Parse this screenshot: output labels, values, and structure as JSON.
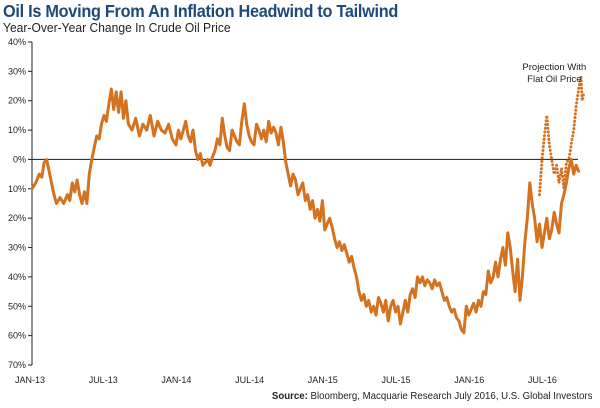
{
  "header": {
    "title": "Oil Is Moving From An Inflation Headwind to Tailwind",
    "subtitle": "Year-Over-Year Change In Crude Oil Price"
  },
  "footer": {
    "source_label": "Source:",
    "source_text": " Bloomberg, Macquarie Research July 2016, U.S. Global Investors"
  },
  "chart_data": {
    "type": "line",
    "title": "Oil Is Moving From An Inflation Headwind to Tailwind",
    "subtitle": "Year-Over-Year Change In Crude Oil Price",
    "xlabel": "",
    "ylabel": "",
    "x_unit": "months since Jan 2013",
    "xlim": [
      0,
      45.2
    ],
    "ylim": [
      -70,
      40
    ],
    "grid": false,
    "y_ticks": [
      40,
      30,
      20,
      10,
      0,
      -10,
      -20,
      -30,
      -40,
      -50,
      -60,
      -70
    ],
    "y_tick_labels": [
      "40%",
      "30%",
      "20%",
      "10%",
      "0%",
      "10%",
      "20%",
      "30%",
      "40%",
      "50%",
      "60%",
      "70%"
    ],
    "x_ticks": [
      0,
      6,
      12,
      18,
      24,
      30,
      36,
      42
    ],
    "x_tick_labels": [
      "JAN-13",
      "JUL-13",
      "JAN-14",
      "JUL-14",
      "JAN-15",
      "JUL-15",
      "JAN-16",
      "JUL-16"
    ],
    "line_color": "#d4721f",
    "zero_line_color": "#333333",
    "annotation": {
      "lines": [
        "Projection With",
        "Flat Oil Price"
      ],
      "anchor_x": 43.8,
      "anchor_y": 31
    },
    "series": [
      {
        "name": "Year-Over-Year Change In Crude Oil Price",
        "style": "solid",
        "x": [
          0,
          0.3,
          0.5,
          0.7,
          0.9,
          1.0,
          1.2,
          1.4,
          1.6,
          1.8,
          2.0,
          2.2,
          2.4,
          2.6,
          2.8,
          3.0,
          3.2,
          3.4,
          3.6,
          3.8,
          4.0,
          4.2,
          4.5,
          4.7,
          4.9,
          5.1,
          5.3,
          5.5,
          5.6,
          5.8,
          6.0,
          6.2,
          6.4,
          6.6,
          6.8,
          7.0,
          7.3,
          7.6,
          7.9,
          8.2,
          8.5,
          8.8,
          9.1,
          9.4,
          9.7,
          10.0,
          10.3,
          10.6,
          10.9,
          11.2,
          11.5,
          11.8,
          12.1,
          12.4,
          12.7,
          13.0,
          13.3,
          13.6,
          13.9,
          14.2,
          14.5,
          14.8,
          15.1,
          15.4,
          15.7,
          16.0,
          16.3,
          16.6,
          16.9,
          17.2,
          17.5,
          17.8,
          18.1,
          18.4,
          18.7,
          19.0,
          19.3,
          19.6,
          19.9,
          20.2,
          20.5,
          20.8,
          21.1,
          21.4,
          21.7,
          22.0,
          22.3,
          22.6,
          22.9,
          23.2,
          23.5,
          23.8,
          24.1,
          24.4,
          24.7,
          25.0,
          25.3,
          25.6,
          25.9,
          26.2,
          26.5,
          26.8,
          27.1,
          27.4,
          27.7,
          28.0,
          28.3,
          28.6,
          28.9,
          29.2,
          29.5,
          29.8,
          30.1,
          30.4,
          30.7,
          31.0,
          31.3,
          31.6,
          31.9,
          32.2,
          32.5,
          32.8,
          33.1,
          33.4,
          33.7,
          34.0,
          34.3,
          34.6,
          34.9,
          35.2,
          35.5,
          35.8,
          36.1,
          36.4,
          36.7,
          37.0,
          37.3,
          37.6,
          37.9,
          38.2,
          38.5,
          38.8,
          39.1,
          39.4,
          39.7,
          40.0,
          40.3,
          40.6,
          40.9,
          41.2,
          41.5,
          41.8,
          42.0,
          42.2,
          42.4
        ],
        "y": [
          -10,
          -8,
          -5,
          -6,
          -2,
          -3,
          0,
          -4,
          -6,
          -10,
          -15,
          -13,
          -15,
          -14,
          -12,
          -13,
          -8,
          -10,
          -7,
          -12,
          -15,
          -10,
          -13,
          -15,
          -5,
          0,
          3,
          8,
          7,
          12,
          15,
          13,
          20,
          24,
          18,
          22,
          16,
          23,
          15,
          20,
          12,
          10,
          14,
          8,
          12,
          10,
          14,
          8,
          13,
          10,
          9,
          12,
          7,
          5,
          10,
          7,
          10,
          12,
          8,
          6,
          9,
          10,
          2,
          0,
          4,
          2,
          -2,
          -1,
          0,
          -2,
          1,
          3,
          7,
          5,
          14,
          8,
          4,
          3,
          10,
          8,
          7,
          5,
          12,
          20,
          14,
          9,
          7,
          5,
          12,
          11,
          8,
          10,
          6,
          14,
          9,
          11,
          10,
          6,
          12,
          8,
          0,
          -6,
          -9,
          -5,
          -7,
          -12,
          -10,
          -8,
          -14,
          -12,
          -17,
          -14,
          -20,
          -18,
          -22,
          -15,
          -25,
          -23,
          -20,
          -22,
          -27,
          -30,
          -28,
          -32,
          -30,
          -33,
          -35,
          -34,
          -38,
          -40,
          -45,
          -48,
          -46,
          -50,
          -48,
          -52,
          -50,
          -52,
          -45,
          -49,
          -52,
          -48,
          -55,
          -51,
          -48,
          -53,
          -50,
          -52,
          -56,
          -54,
          -50,
          -52,
          -46,
          -44,
          -47
        ],
        "x_cont": [
          42.6,
          42.8,
          43.0,
          43.2,
          43.4,
          43.6,
          43.8,
          44.0,
          44.2,
          44.4,
          44.6,
          44.8,
          45.0,
          45.2
        ],
        "y_cont": [
          -44,
          -42,
          -40,
          -38,
          -41,
          -39,
          -43,
          -40,
          -44,
          -42,
          -46,
          -41,
          -43,
          -42
        ]
      }
    ],
    "points_solid": [
      [
        0,
        -10
      ],
      [
        0.3,
        -8
      ],
      [
        0.6,
        -5
      ],
      [
        0.8,
        -6
      ],
      [
        1.0,
        -1
      ],
      [
        1.2,
        0
      ],
      [
        1.4,
        -4
      ],
      [
        1.6,
        -8
      ],
      [
        1.8,
        -12
      ],
      [
        2.0,
        -15
      ],
      [
        2.3,
        -13
      ],
      [
        2.6,
        -15
      ],
      [
        2.9,
        -12
      ],
      [
        3.1,
        -14
      ],
      [
        3.3,
        -8
      ],
      [
        3.5,
        -11
      ],
      [
        3.7,
        -7
      ],
      [
        3.9,
        -12
      ],
      [
        4.1,
        -15
      ],
      [
        4.3,
        -11
      ],
      [
        4.5,
        -15
      ],
      [
        4.7,
        -5
      ],
      [
        4.9,
        0
      ],
      [
        5.1,
        4
      ],
      [
        5.3,
        8
      ],
      [
        5.5,
        7
      ],
      [
        5.7,
        12
      ],
      [
        5.9,
        15
      ],
      [
        6.1,
        13
      ],
      [
        6.3,
        19
      ],
      [
        6.5,
        24
      ],
      [
        6.7,
        17
      ],
      [
        6.9,
        23
      ],
      [
        7.1,
        16
      ],
      [
        7.3,
        23
      ],
      [
        7.5,
        14
      ],
      [
        7.7,
        20
      ],
      [
        7.9,
        12
      ],
      [
        8.2,
        10
      ],
      [
        8.5,
        14
      ],
      [
        8.8,
        8
      ],
      [
        9.1,
        12
      ],
      [
        9.4,
        10
      ],
      [
        9.7,
        15
      ],
      [
        10.0,
        8
      ],
      [
        10.3,
        13
      ],
      [
        10.6,
        10
      ],
      [
        10.9,
        9
      ],
      [
        11.2,
        12
      ],
      [
        11.5,
        7
      ],
      [
        11.8,
        5
      ],
      [
        12.0,
        10
      ],
      [
        12.2,
        7
      ],
      [
        12.4,
        10
      ],
      [
        12.6,
        13
      ],
      [
        12.8,
        8
      ],
      [
        13.0,
        6
      ],
      [
        13.2,
        10
      ],
      [
        13.4,
        3
      ],
      [
        13.6,
        0
      ],
      [
        13.8,
        2
      ],
      [
        14.0,
        -2
      ],
      [
        14.2,
        -1
      ],
      [
        14.4,
        0
      ],
      [
        14.6,
        -2
      ],
      [
        14.8,
        1
      ],
      [
        15.0,
        3
      ],
      [
        15.2,
        7
      ],
      [
        15.4,
        5
      ],
      [
        15.6,
        14
      ],
      [
        15.8,
        8
      ],
      [
        16.0,
        4
      ],
      [
        16.2,
        3
      ],
      [
        16.4,
        10
      ],
      [
        16.6,
        8
      ],
      [
        16.8,
        6
      ],
      [
        17.0,
        5
      ],
      [
        17.2,
        13
      ],
      [
        17.4,
        19
      ],
      [
        17.6,
        12
      ],
      [
        17.8,
        8
      ],
      [
        18.0,
        6
      ],
      [
        18.2,
        5
      ],
      [
        18.4,
        12
      ],
      [
        18.6,
        10
      ],
      [
        18.8,
        7
      ],
      [
        19.0,
        10
      ],
      [
        19.2,
        6
      ],
      [
        19.4,
        13
      ],
      [
        19.6,
        9
      ],
      [
        19.8,
        11
      ],
      [
        20.0,
        9
      ],
      [
        20.2,
        5
      ],
      [
        20.4,
        11
      ],
      [
        20.6,
        6
      ],
      [
        20.8,
        -1
      ],
      [
        21.0,
        -5
      ],
      [
        21.2,
        -9
      ],
      [
        21.4,
        -5
      ],
      [
        21.6,
        -7
      ],
      [
        21.8,
        -12
      ],
      [
        22.0,
        -10
      ],
      [
        22.2,
        -8
      ],
      [
        22.4,
        -14
      ],
      [
        22.6,
        -12
      ],
      [
        22.8,
        -17
      ],
      [
        23.0,
        -14
      ],
      [
        23.2,
        -20
      ],
      [
        23.4,
        -17
      ],
      [
        23.6,
        -21
      ],
      [
        23.8,
        -14
      ],
      [
        24.0,
        -24
      ],
      [
        24.2,
        -22
      ],
      [
        24.4,
        -20
      ],
      [
        24.6,
        -23
      ],
      [
        24.8,
        -27
      ],
      [
        25.0,
        -30
      ],
      [
        25.2,
        -28
      ],
      [
        25.4,
        -31
      ],
      [
        25.6,
        -29
      ],
      [
        25.8,
        -32
      ],
      [
        26.0,
        -35
      ],
      [
        26.2,
        -33
      ],
      [
        26.4,
        -37
      ],
      [
        26.6,
        -40
      ],
      [
        26.8,
        -45
      ],
      [
        27.0,
        -48
      ],
      [
        27.2,
        -46
      ],
      [
        27.4,
        -50
      ],
      [
        27.6,
        -48
      ],
      [
        27.8,
        -52
      ],
      [
        28.0,
        -50
      ],
      [
        28.2,
        -53
      ],
      [
        28.4,
        -47
      ],
      [
        28.6,
        -49
      ],
      [
        28.8,
        -52
      ],
      [
        29.0,
        -48
      ],
      [
        29.2,
        -55
      ],
      [
        29.4,
        -50
      ],
      [
        29.6,
        -48
      ],
      [
        29.8,
        -52
      ],
      [
        30.0,
        -50
      ],
      [
        30.2,
        -56
      ],
      [
        30.4,
        -52
      ],
      [
        30.6,
        -48
      ],
      [
        30.8,
        -52
      ],
      [
        31.0,
        -46
      ],
      [
        31.2,
        -44
      ],
      [
        31.4,
        -47
      ],
      [
        31.6,
        -40
      ],
      [
        31.8,
        -42
      ],
      [
        32.0,
        -40
      ],
      [
        32.2,
        -43
      ],
      [
        32.4,
        -41
      ],
      [
        32.6,
        -42
      ],
      [
        32.8,
        -44
      ],
      [
        33.0,
        -41
      ],
      [
        33.2,
        -43
      ],
      [
        33.4,
        -42
      ],
      [
        33.6,
        -45
      ],
      [
        33.8,
        -48
      ],
      [
        34.0,
        -47
      ],
      [
        34.2,
        -50
      ],
      [
        34.4,
        -52
      ],
      [
        34.6,
        -51
      ],
      [
        34.8,
        -54
      ],
      [
        35.0,
        -55
      ],
      [
        35.2,
        -58
      ],
      [
        35.4,
        -59
      ],
      [
        35.6,
        -50
      ],
      [
        35.8,
        -53
      ],
      [
        36.0,
        -51
      ],
      [
        36.2,
        -49
      ],
      [
        36.4,
        -52
      ],
      [
        36.6,
        -48
      ],
      [
        36.8,
        -50
      ],
      [
        37.0,
        -45
      ],
      [
        37.2,
        -46
      ],
      [
        37.4,
        -38
      ],
      [
        37.6,
        -42
      ],
      [
        37.8,
        -40
      ],
      [
        38.0,
        -35
      ],
      [
        38.2,
        -40
      ],
      [
        38.4,
        -34
      ],
      [
        38.6,
        -30
      ],
      [
        38.8,
        -36
      ],
      [
        39.0,
        -25
      ],
      [
        39.2,
        -30
      ],
      [
        39.4,
        -38
      ],
      [
        39.6,
        -45
      ],
      [
        39.8,
        -34
      ],
      [
        40.0,
        -48
      ],
      [
        40.2,
        -40
      ],
      [
        40.4,
        -28
      ],
      [
        40.6,
        -20
      ],
      [
        40.8,
        -8
      ],
      [
        41.0,
        -15
      ],
      [
        41.2,
        -20
      ],
      [
        41.4,
        -28
      ],
      [
        41.6,
        -22
      ],
      [
        41.8,
        -30
      ],
      [
        42.0,
        -25
      ],
      [
        42.2,
        -20
      ],
      [
        42.4,
        -27
      ],
      [
        42.6,
        -24
      ],
      [
        42.8,
        -18
      ],
      [
        43.0,
        -22
      ],
      [
        43.2,
        -25
      ],
      [
        43.4,
        -15
      ],
      [
        43.6,
        -12
      ],
      [
        43.8,
        -8
      ],
      [
        44.0,
        -3
      ],
      [
        44.2,
        0
      ],
      [
        44.4,
        -5
      ],
      [
        44.6,
        -2
      ],
      [
        44.8,
        -4
      ]
    ],
    "points_projection": [
      [
        41.6,
        -12
      ],
      [
        41.8,
        0
      ],
      [
        42.0,
        8
      ],
      [
        42.2,
        15
      ],
      [
        42.4,
        5
      ],
      [
        42.6,
        0
      ],
      [
        42.8,
        -5
      ],
      [
        43.0,
        -2
      ],
      [
        43.2,
        -8
      ],
      [
        43.4,
        -3
      ],
      [
        43.6,
        -10
      ],
      [
        43.8,
        -1
      ],
      [
        44.0,
        0
      ],
      [
        44.2,
        5
      ],
      [
        44.4,
        10
      ],
      [
        44.6,
        18
      ],
      [
        44.8,
        24
      ],
      [
        45.0,
        28
      ],
      [
        45.1,
        20
      ],
      [
        45.2,
        22
      ]
    ]
  }
}
